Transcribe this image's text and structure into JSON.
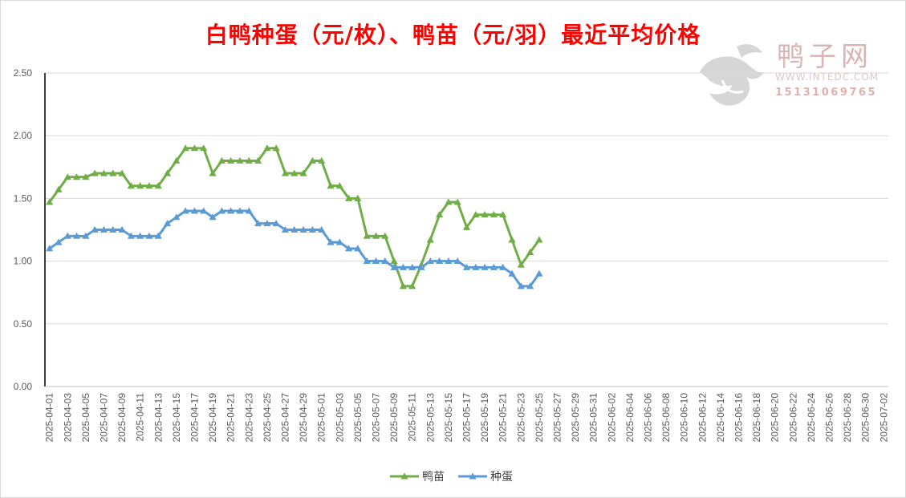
{
  "chart_title": "白鸭种蛋（元/枚）、鸭苗（元/羽）最近平均价格",
  "watermark": {
    "brand": "鸭子网",
    "site": "WWW.INTEDC.COM",
    "phone": "15131069765",
    "icon": "duck-logo-icon"
  },
  "colors": {
    "title": "#ff0000",
    "duckling": "#70ad47",
    "egg": "#5b9bd5",
    "watermark": "#c9a9a9"
  },
  "chart_data": {
    "type": "line",
    "title": "白鸭种蛋（元/枚）、鸭苗（元/羽）最近平均价格",
    "xlabel": "",
    "ylabel": "",
    "ylim": [
      0,
      2.5
    ],
    "yticks": [
      "0.00",
      "0.50",
      "1.00",
      "1.50",
      "2.00",
      "2.50"
    ],
    "grid": true,
    "legend_position": "bottom",
    "x_range": [
      "2025-04-01",
      "2025-07-02"
    ],
    "x_tick_labels": [
      "2025-04-01",
      "2025-04-03",
      "2025-04-05",
      "2025-04-07",
      "2025-04-09",
      "2025-04-11",
      "2025-04-13",
      "2025-04-15",
      "2025-04-17",
      "2025-04-19",
      "2025-04-21",
      "2025-04-23",
      "2025-04-25",
      "2025-04-27",
      "2025-04-29",
      "2025-05-01",
      "2025-05-03",
      "2025-05-05",
      "2025-05-07",
      "2025-05-09",
      "2025-05-11",
      "2025-05-13",
      "2025-05-15",
      "2025-05-17",
      "2025-05-19",
      "2025-05-21",
      "2025-05-23",
      "2025-05-25",
      "2025-05-27",
      "2025-05-29",
      "2025-05-31",
      "2025-06-02",
      "2025-06-04",
      "2025-06-06",
      "2025-06-08",
      "2025-06-10",
      "2025-06-12",
      "2025-06-14",
      "2025-06-16",
      "2025-06-18",
      "2025-06-20",
      "2025-06-22",
      "2025-06-24",
      "2025-06-26",
      "2025-06-28",
      "2025-06-30",
      "2025-07-02"
    ],
    "x": [
      "2025-04-01",
      "2025-04-02",
      "2025-04-03",
      "2025-04-04",
      "2025-04-05",
      "2025-04-06",
      "2025-04-07",
      "2025-04-08",
      "2025-04-09",
      "2025-04-10",
      "2025-04-11",
      "2025-04-12",
      "2025-04-13",
      "2025-04-14",
      "2025-04-15",
      "2025-04-16",
      "2025-04-17",
      "2025-04-18",
      "2025-04-19",
      "2025-04-20",
      "2025-04-21",
      "2025-04-22",
      "2025-04-23",
      "2025-04-24",
      "2025-04-25",
      "2025-04-26",
      "2025-04-27",
      "2025-04-28",
      "2025-04-29",
      "2025-04-30",
      "2025-05-01",
      "2025-05-02",
      "2025-05-03",
      "2025-05-04",
      "2025-05-05",
      "2025-05-06",
      "2025-05-07",
      "2025-05-08",
      "2025-05-09",
      "2025-05-10",
      "2025-05-11",
      "2025-05-12",
      "2025-05-13",
      "2025-05-14",
      "2025-05-15",
      "2025-05-16",
      "2025-05-17",
      "2025-05-18",
      "2025-05-19",
      "2025-05-20",
      "2025-05-21",
      "2025-05-22",
      "2025-05-23",
      "2025-05-24",
      "2025-05-25"
    ],
    "series": [
      {
        "name": "鸭苗",
        "color": "#70ad47",
        "values": [
          1.47,
          1.57,
          1.67,
          1.67,
          1.67,
          1.7,
          1.7,
          1.7,
          1.7,
          1.6,
          1.6,
          1.6,
          1.6,
          1.7,
          1.8,
          1.9,
          1.9,
          1.9,
          1.7,
          1.8,
          1.8,
          1.8,
          1.8,
          1.8,
          1.9,
          1.9,
          1.7,
          1.7,
          1.7,
          1.8,
          1.8,
          1.6,
          1.6,
          1.5,
          1.5,
          1.2,
          1.2,
          1.2,
          1.0,
          0.8,
          0.8,
          0.97,
          1.17,
          1.37,
          1.47,
          1.47,
          1.27,
          1.37,
          1.37,
          1.37,
          1.37,
          1.17,
          0.97,
          1.07,
          1.17
        ]
      },
      {
        "name": "种蛋",
        "color": "#5b9bd5",
        "values": [
          1.1,
          1.15,
          1.2,
          1.2,
          1.2,
          1.25,
          1.25,
          1.25,
          1.25,
          1.2,
          1.2,
          1.2,
          1.2,
          1.3,
          1.35,
          1.4,
          1.4,
          1.4,
          1.35,
          1.4,
          1.4,
          1.4,
          1.4,
          1.3,
          1.3,
          1.3,
          1.25,
          1.25,
          1.25,
          1.25,
          1.25,
          1.15,
          1.15,
          1.1,
          1.1,
          1.0,
          1.0,
          1.0,
          0.95,
          0.95,
          0.95,
          0.95,
          1.0,
          1.0,
          1.0,
          1.0,
          0.95,
          0.95,
          0.95,
          0.95,
          0.95,
          0.9,
          0.8,
          0.8,
          0.9
        ]
      }
    ]
  }
}
